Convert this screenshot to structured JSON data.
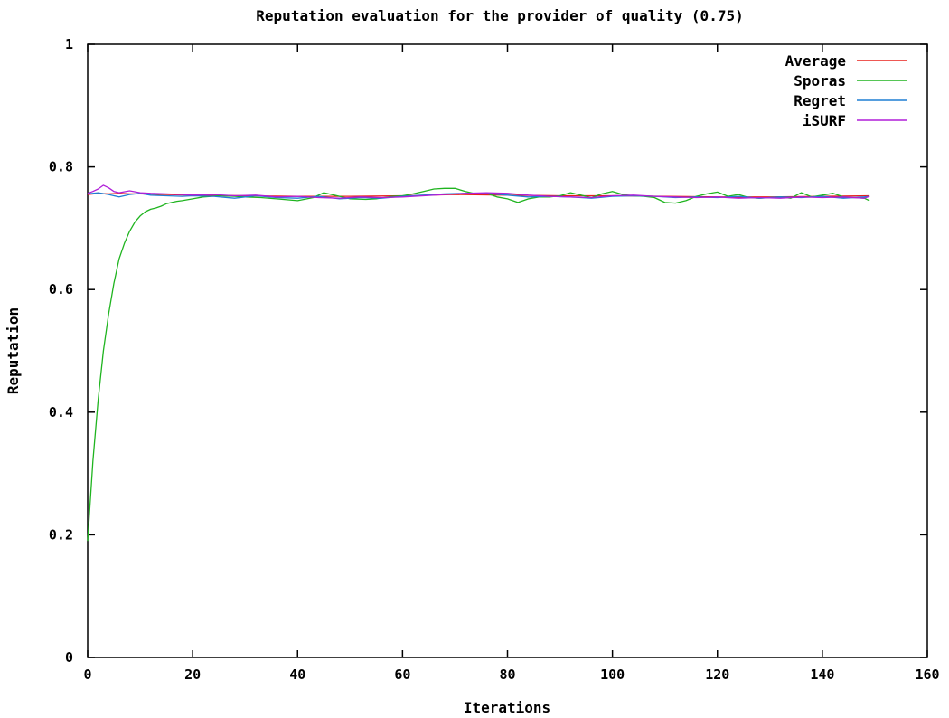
{
  "chart_data": {
    "type": "line",
    "title": "Reputation evaluation for the provider of quality (0.75)",
    "xlabel": "Iterations",
    "ylabel": "Reputation",
    "xlim": [
      0,
      160
    ],
    "ylim": [
      0,
      1
    ],
    "xticks": [
      0,
      20,
      40,
      60,
      80,
      100,
      120,
      140,
      160
    ],
    "yticks": [
      0,
      0.2,
      0.4,
      0.6,
      0.8,
      1
    ],
    "xtick_labels": [
      "0",
      "20",
      "40",
      "60",
      "80",
      "100",
      "120",
      "140",
      "160"
    ],
    "ytick_labels": [
      "0",
      "0.2",
      "0.4",
      "0.6",
      "0.8",
      "1"
    ],
    "grid": false,
    "legend_position": "top-right",
    "series": [
      {
        "name": "Average",
        "color": "#e8201c",
        "x": [
          0,
          2,
          4,
          6,
          8,
          10,
          20,
          30,
          40,
          50,
          60,
          70,
          80,
          90,
          100,
          110,
          120,
          130,
          140,
          149
        ],
        "y": [
          0.755,
          0.757,
          0.756,
          0.757,
          0.756,
          0.756,
          0.754,
          0.753,
          0.752,
          0.752,
          0.753,
          0.755,
          0.754,
          0.753,
          0.753,
          0.752,
          0.751,
          0.751,
          0.752,
          0.753
        ]
      },
      {
        "name": "Sporas",
        "color": "#1fb41f",
        "x": [
          0,
          1,
          2,
          3,
          4,
          5,
          6,
          7,
          8,
          9,
          10,
          11,
          12,
          13,
          14,
          15,
          16,
          17,
          18,
          20,
          22,
          25,
          28,
          30,
          33,
          36,
          40,
          43,
          45,
          48,
          50,
          53,
          55,
          58,
          60,
          62,
          64,
          66,
          68,
          70,
          72,
          74,
          76,
          78,
          80,
          82,
          84,
          86,
          88,
          90,
          92,
          94,
          96,
          98,
          100,
          102,
          104,
          106,
          108,
          110,
          112,
          114,
          116,
          118,
          120,
          122,
          124,
          126,
          128,
          130,
          132,
          134,
          136,
          138,
          140,
          142,
          144,
          146,
          148,
          149
        ],
        "y": [
          0.19,
          0.32,
          0.42,
          0.5,
          0.56,
          0.61,
          0.65,
          0.675,
          0.695,
          0.71,
          0.72,
          0.727,
          0.731,
          0.733,
          0.736,
          0.74,
          0.742,
          0.744,
          0.745,
          0.748,
          0.751,
          0.753,
          0.752,
          0.751,
          0.75,
          0.748,
          0.745,
          0.75,
          0.758,
          0.752,
          0.748,
          0.747,
          0.748,
          0.752,
          0.753,
          0.756,
          0.76,
          0.764,
          0.765,
          0.765,
          0.76,
          0.756,
          0.757,
          0.751,
          0.748,
          0.742,
          0.748,
          0.751,
          0.751,
          0.753,
          0.758,
          0.754,
          0.75,
          0.756,
          0.76,
          0.755,
          0.753,
          0.752,
          0.75,
          0.742,
          0.741,
          0.745,
          0.752,
          0.756,
          0.759,
          0.752,
          0.755,
          0.75,
          0.749,
          0.75,
          0.751,
          0.749,
          0.758,
          0.751,
          0.754,
          0.757,
          0.751,
          0.75,
          0.749,
          0.745
        ]
      },
      {
        "name": "Regret",
        "color": "#1f7fd4",
        "x": [
          0,
          2,
          4,
          6,
          8,
          10,
          12,
          15,
          18,
          20,
          24,
          28,
          32,
          36,
          40,
          44,
          48,
          52,
          56,
          60,
          64,
          68,
          72,
          76,
          80,
          84,
          88,
          92,
          96,
          100,
          104,
          108,
          112,
          116,
          120,
          124,
          128,
          132,
          136,
          140,
          144,
          148,
          149
        ],
        "y": [
          0.756,
          0.758,
          0.755,
          0.751,
          0.755,
          0.757,
          0.754,
          0.753,
          0.752,
          0.753,
          0.752,
          0.749,
          0.753,
          0.75,
          0.749,
          0.752,
          0.748,
          0.75,
          0.749,
          0.752,
          0.754,
          0.756,
          0.757,
          0.757,
          0.754,
          0.751,
          0.752,
          0.751,
          0.749,
          0.752,
          0.753,
          0.752,
          0.75,
          0.751,
          0.75,
          0.752,
          0.749,
          0.751,
          0.75,
          0.752,
          0.749,
          0.751,
          0.752
        ]
      },
      {
        "name": "iSURF",
        "color": "#b01fd8",
        "x": [
          0,
          1,
          2,
          3,
          4,
          5,
          6,
          8,
          10,
          12,
          15,
          18,
          20,
          24,
          28,
          32,
          36,
          40,
          44,
          48,
          52,
          56,
          60,
          64,
          68,
          72,
          76,
          80,
          84,
          88,
          92,
          96,
          100,
          104,
          108,
          112,
          116,
          120,
          124,
          128,
          132,
          136,
          140,
          144,
          148,
          149
        ],
        "y": [
          0.757,
          0.76,
          0.764,
          0.77,
          0.766,
          0.76,
          0.758,
          0.761,
          0.758,
          0.757,
          0.756,
          0.755,
          0.754,
          0.755,
          0.753,
          0.754,
          0.751,
          0.752,
          0.75,
          0.749,
          0.751,
          0.75,
          0.751,
          0.753,
          0.755,
          0.757,
          0.758,
          0.757,
          0.754,
          0.752,
          0.751,
          0.75,
          0.753,
          0.754,
          0.752,
          0.751,
          0.75,
          0.751,
          0.749,
          0.75,
          0.749,
          0.751,
          0.75,
          0.751,
          0.749,
          0.752
        ]
      }
    ]
  }
}
